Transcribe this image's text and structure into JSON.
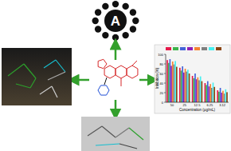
{
  "diagram": {
    "center_label": "A"
  },
  "chart_data": {
    "type": "bar",
    "x_label": "Concentration (µg/mL)",
    "y_label": "Inhibition (%)",
    "categories": [
      "50",
      "25",
      "12.5",
      "6.25",
      "3.12"
    ],
    "series": [
      {
        "color": "#e6194b",
        "values": [
          88,
          72,
          55,
          40,
          25
        ]
      },
      {
        "color": "#3cb44b",
        "values": [
          82,
          66,
          50,
          36,
          22
        ]
      },
      {
        "color": "#4363d8",
        "values": [
          90,
          75,
          60,
          44,
          30
        ]
      },
      {
        "color": "#911eb4",
        "values": [
          76,
          62,
          48,
          33,
          20
        ]
      },
      {
        "color": "#f58231",
        "values": [
          85,
          70,
          52,
          38,
          24
        ]
      },
      {
        "color": "#808080",
        "values": [
          79,
          64,
          46,
          30,
          18
        ]
      },
      {
        "color": "#46f0f0",
        "values": [
          86,
          68,
          54,
          41,
          27
        ]
      },
      {
        "color": "#8b4513",
        "values": [
          74,
          60,
          44,
          32,
          21
        ]
      }
    ],
    "ylim": [
      0,
      100
    ],
    "yticks": [
      0,
      20,
      40,
      60,
      80,
      100
    ],
    "grid": false
  }
}
